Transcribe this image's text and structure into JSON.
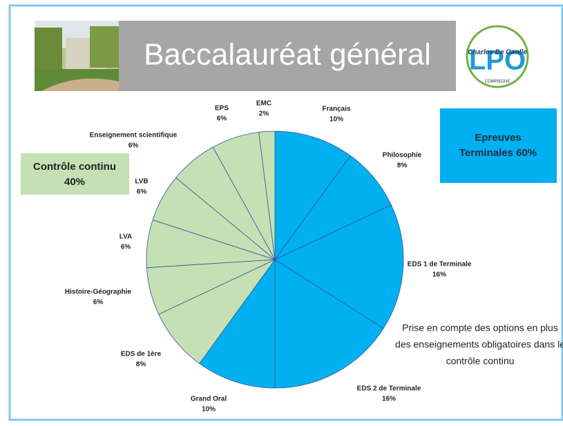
{
  "header": {
    "title": "Baccalauréat général",
    "logo": {
      "name": "Charles De Gaulle",
      "acronym": "LPO",
      "town": "COMPIEGNE"
    }
  },
  "boxes": {
    "continuous": {
      "line1": "Contrôle continu",
      "line2": "40%"
    },
    "final": {
      "line1": "Epreuves",
      "line2": "Terminales 60%"
    }
  },
  "note": {
    "lines": [
      "Prise en compte des options en plus",
      "des enseignements obligatoires dans le",
      "contrôle continu"
    ]
  },
  "chart_data": {
    "type": "pie",
    "categories": [
      "Français",
      "Philosophie",
      "EDS 1 de Terminale",
      "EDS 2 de Terminale",
      "Grand Oral",
      "EDS de 1ère",
      "Histoire-Géographie",
      "LVA",
      "LVB",
      "Enseignement scientifique",
      "EPS",
      "EMC"
    ],
    "values": [
      10,
      8,
      16,
      16,
      10,
      8,
      6,
      6,
      6,
      6,
      6,
      2
    ],
    "value_labels": [
      "10%",
      "8%",
      "16%",
      "16%",
      "10%",
      "8%",
      "6%",
      "6%",
      "6%",
      "6%",
      "6%",
      "2%"
    ],
    "colors": [
      "#00b0f0",
      "#00b0f0",
      "#00b0f0",
      "#00b0f0",
      "#00b0f0",
      "#c5e0b4",
      "#c5e0b4",
      "#c5e0b4",
      "#c5e0b4",
      "#c5e0b4",
      "#c5e0b4",
      "#c5e0b4"
    ]
  }
}
